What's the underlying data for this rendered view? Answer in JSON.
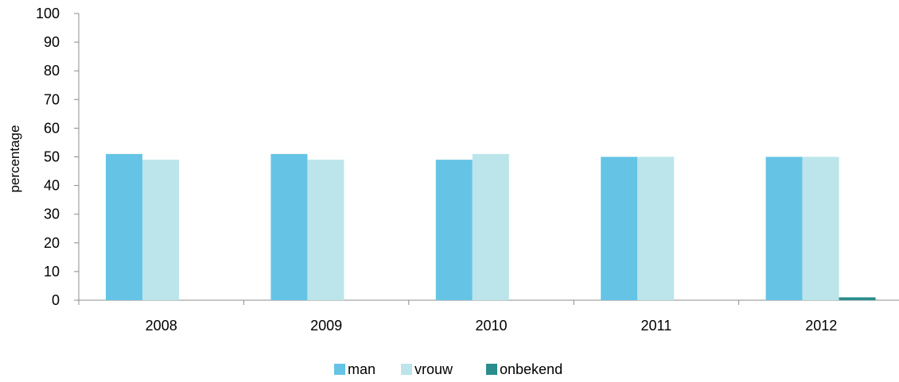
{
  "chart_data": {
    "type": "bar",
    "title": "",
    "xlabel": "",
    "ylabel": "percentage",
    "categories": [
      "2008",
      "2009",
      "2010",
      "2011",
      "2012"
    ],
    "series": [
      {
        "name": "man",
        "color": "#65C4E5",
        "values": [
          51,
          51,
          49,
          50,
          50
        ]
      },
      {
        "name": "vrouw",
        "color": "#BBE5EA",
        "values": [
          49,
          49,
          51,
          50,
          50
        ]
      },
      {
        "name": "onbekend",
        "color": "#2A8C8C",
        "values": [
          0,
          0,
          0,
          0,
          1
        ]
      }
    ],
    "ylim": [
      0,
      100
    ],
    "yticks": [
      0,
      10,
      20,
      30,
      40,
      50,
      60,
      70,
      80,
      90,
      100
    ],
    "grid": false,
    "legend_position": "bottom-center"
  }
}
